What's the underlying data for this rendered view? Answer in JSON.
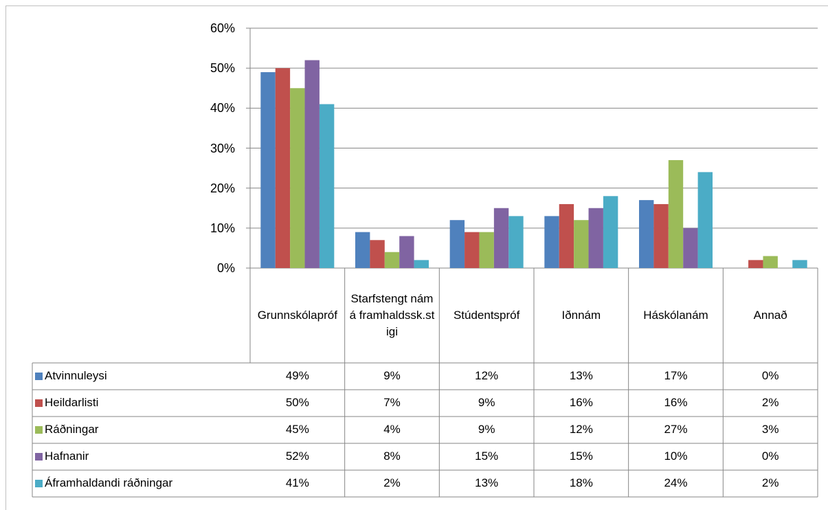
{
  "chart_data": {
    "type": "bar",
    "categories": [
      "Grunnskólapróf",
      "Starfstengt nám á framhaldssk.stigi",
      "Stúdentspróf",
      "Iðnnám",
      "Háskólanám",
      "Annað"
    ],
    "series": [
      {
        "name": "Atvinnuleysi",
        "color": "#4f81bd",
        "values": [
          49,
          9,
          12,
          13,
          17,
          0
        ],
        "value_labels": [
          "49%",
          "9%",
          "12%",
          "13%",
          "17%",
          "0%"
        ]
      },
      {
        "name": "Heildarlisti",
        "color": "#c0504d",
        "values": [
          50,
          7,
          9,
          16,
          16,
          2
        ],
        "value_labels": [
          "50%",
          "7%",
          "9%",
          "16%",
          "16%",
          "2%"
        ]
      },
      {
        "name": "Ráðningar",
        "color": "#9bbb59",
        "values": [
          45,
          4,
          9,
          12,
          27,
          3
        ],
        "value_labels": [
          "45%",
          "4%",
          "9%",
          "12%",
          "27%",
          "3%"
        ]
      },
      {
        "name": "Hafnanir",
        "color": "#8064a2",
        "values": [
          52,
          8,
          15,
          15,
          10,
          0
        ],
        "value_labels": [
          "52%",
          "8%",
          "15%",
          "15%",
          "10%",
          "0%"
        ]
      },
      {
        "name": "Áframhaldandi ráðningar",
        "color": "#4bacc6",
        "values": [
          41,
          2,
          13,
          18,
          24,
          2
        ],
        "value_labels": [
          "41%",
          "2%",
          "13%",
          "18%",
          "24%",
          "2%"
        ]
      }
    ],
    "ylim": [
      0,
      60
    ],
    "yticks": [
      {
        "value": 0,
        "label": "0%"
      },
      {
        "value": 10,
        "label": "10%"
      },
      {
        "value": 20,
        "label": "20%"
      },
      {
        "value": 30,
        "label": "30%"
      },
      {
        "value": 40,
        "label": "40%"
      },
      {
        "value": 50,
        "label": "50%"
      },
      {
        "value": 60,
        "label": "60%"
      }
    ],
    "grid": true
  }
}
